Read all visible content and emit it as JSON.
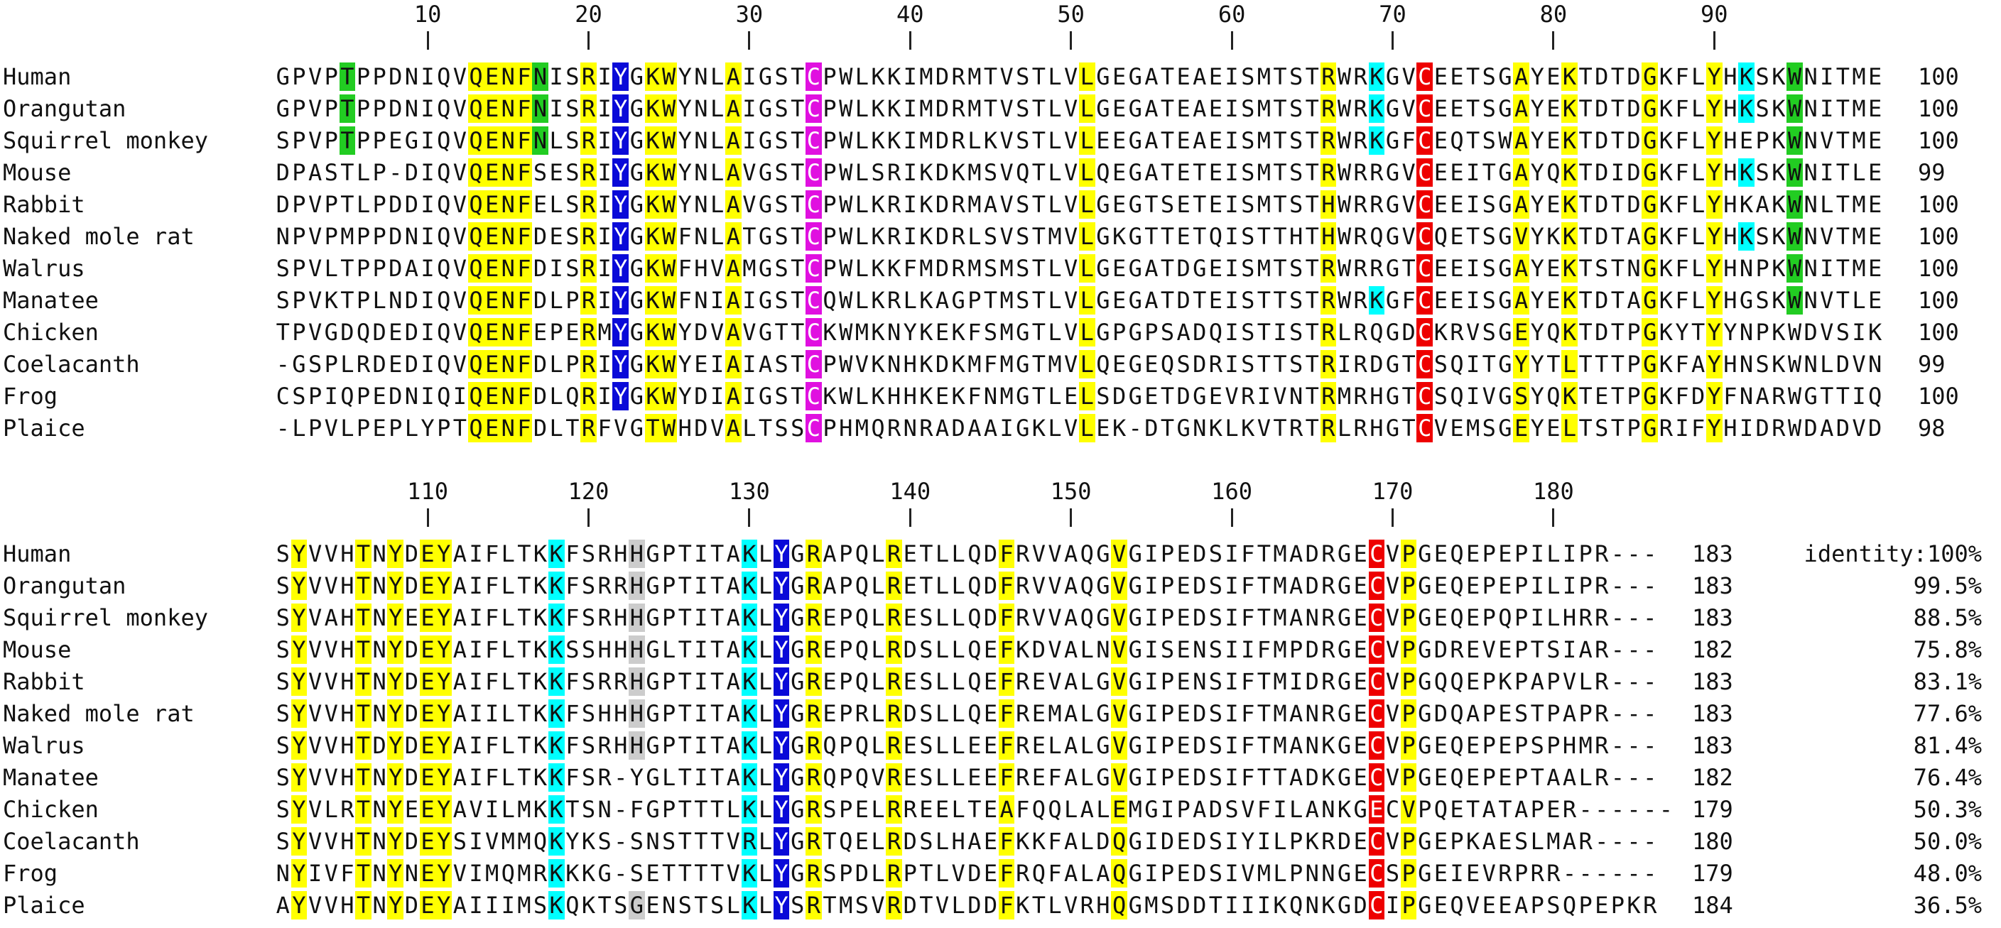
{
  "colors": {
    "yellow": "#ffff00",
    "green": "#22cc22",
    "blue": "#0a0ad8",
    "magenta": "#e010e0",
    "cyan": "#00ffff",
    "red": "#ee0000",
    "gray": "#cccccc"
  },
  "blocks": [
    {
      "ruler": [
        {
          "label": "10",
          "pos": 10
        },
        {
          "label": "20",
          "pos": 20
        },
        {
          "label": "30",
          "pos": 30
        },
        {
          "label": "40",
          "pos": 40
        },
        {
          "label": "50",
          "pos": 50
        },
        {
          "label": "60",
          "pos": 60
        },
        {
          "label": "70",
          "pos": 70
        },
        {
          "label": "80",
          "pos": 80
        },
        {
          "label": "90",
          "pos": 90
        }
      ],
      "rows": [
        {
          "name": "Human",
          "seq": "GPVPTPPDNIQVQENFNISRIYGKWYNLAIGSTCPWLKKIMDRMTVSTLVLGEGATEAEISMTSTRWRKGVCEETSGAYEKTDTDGKFLYHKSKWNITME",
          "count": "100"
        },
        {
          "name": "Orangutan",
          "seq": "GPVPTPPDNIQVQENFNISRIYGKWYNLAIGSTCPWLKKIMDRMTVSTLVLGEGATEAEISMTSTRWRKGVCEETSGAYEKTDTDGKFLYHKSKWNITME",
          "count": "100"
        },
        {
          "name": "Squirrel monkey",
          "seq": "SPVPTPPEGIQVQENFNLSRIYGKWYNLAIGSTCPWLKKIMDRLKVSTLVLEEGATEAEISMTSTRWRKGFCEQTSWAYEKTDTDGKFLYHEPKWNVTME",
          "count": "100"
        },
        {
          "name": "Mouse",
          "seq": "DPASTLP-DIQVQENFSESRIYGKWYNLAVGSTCPWLSRIKDKMSVQTLVLQEGATETEISMTSTRWRRGVCEEITGAYQKTDIDGKFLYHKSKWNITLE",
          "count": "99"
        },
        {
          "name": "Rabbit",
          "seq": "DPVPTLPDDIQVQENFELSRIYGKWYNLAVGSTCPWLKRIKDRMAVSTLVLGEGTSETEISMTSTHWRRGVCEEISGAYEKTDTDGKFLYHKAKWNLTME",
          "count": "100"
        },
        {
          "name": "Naked mole rat",
          "seq": "NPVPMPPDNIQVQENFDESRIYGKWFNLATGSTCPWLKRIKDRLSVSTMVLGKGTTETQISTTHTHWRQGVCQETSGVYKKTDTAGKFLYHKSKWNVTME",
          "count": "100"
        },
        {
          "name": "Walrus",
          "seq": "SPVLTPPDAIQVQENFDISRIYGKWFHVAMGSTCPWLKKFMDRMSMSTLVLGEGATDGEISMTSTRWRRGTCEEISGAYEKTSTNGKFLYHNPKWNITME",
          "count": "100"
        },
        {
          "name": "Manatee",
          "seq": "SPVKTPLNDIQVQENFDLPRIYGKWFNIAIGSTCQWLKRLKAGPTMSTLVLGEGATDTEISTTSTRWRKGFCEEISGAYEKTDTAGKFLYHGSKWNVTLE",
          "count": "100"
        },
        {
          "name": "Chicken",
          "seq": "TPVGDQDEDIQVQENFEPERMYGKWYDVAVGTTCKWMKNYKEKFSMGTLVLGPGPSADQISTISTRLRQGDCKRVSGEYQKTDTPGKYTYYNPKWDVSIK",
          "count": "100"
        },
        {
          "name": "Coelacanth",
          "seq": "-GSPLRDEDIQVQENFDLPRIYGKWYEIAIASTCPWVKNHKDKMFMGTMVLQEGEQSDRISTTSTRIRDGTCSQITGYYTLTTTPGKFAYHNSKWNLDVN",
          "count": "99"
        },
        {
          "name": "Frog",
          "seq": "CSPIQPEDNIQIQENFDLQRIYGKWYDIAIGSTCKWLKHHKEKFNMGTLELSDGETDGEVRIVNTRMRHGTCSQIVGSYQKTETPGKFDYFNARWGTTIQ",
          "count": "100"
        },
        {
          "name": "Plaice",
          "seq": "-LPVLPEPLYPTQENFDLTRFVGTWHDVALTSSCPHMQRNRADAAIGKLVLEK-DTGNKLKVTRTRLRHGTCVEMSGEYELTSTPGRIFYHIDRWDADVD",
          "count": "98"
        }
      ],
      "identity": []
    },
    {
      "ruler": [
        {
          "label": "110",
          "pos": 10
        },
        {
          "label": "120",
          "pos": 20
        },
        {
          "label": "130",
          "pos": 30
        },
        {
          "label": "140",
          "pos": 40
        },
        {
          "label": "150",
          "pos": 50
        },
        {
          "label": "160",
          "pos": 60
        },
        {
          "label": "170",
          "pos": 70
        },
        {
          "label": "180",
          "pos": 80
        }
      ],
      "rows": [
        {
          "name": "Human",
          "seq": "SYVVHTNYDEYAIFLTKKFSRHHGPTITAKLYGRAPQLRETLLQDFRVVAQGVGIPEDSIFTMADRGECVPGEQEPEPILIPR---",
          "count": "183"
        },
        {
          "name": "Orangutan",
          "seq": "SYVVHTNYDEYAIFLTKKFSRRHGPTITAKLYGRAPQLRETLLQDFRVVAQGVGIPEDSIFTMADRGECVPGEQEPEPILIPR---",
          "count": "183"
        },
        {
          "name": "Squirrel monkey",
          "seq": "SYVAHTNYEEYAIFLTKKFSRHHGPTITAKLYGREPQLRESLLQDFRVVAQGVGIPEDSIFTMANRGECVPGEQEPQPILHRR---",
          "count": "183"
        },
        {
          "name": "Mouse",
          "seq": "SYVVHTNYDEYAIFLTKKSSHHHGLTITAKLYGREPQLRDSLLQEFKDVALNVGISENSIIFMPDRGECVPGDREVEPTSIAR---",
          "count": "182"
        },
        {
          "name": "Rabbit",
          "seq": "SYVVHTNYDEYAIFLTKKFSRRHGPTITAKLYGREPQLRESLLQEFREVALGVGIPENSIFTMIDRGECVPGQQEPKPAPVLR---",
          "count": "183"
        },
        {
          "name": "Naked mole rat",
          "seq": "SYVVHTNYDEYAIILTKKFSHHHGPTITAKLYGREPRLRDSLLQEFREMALGVGIPEDSIFTMANRGECVPGDQAPESTPAPR---",
          "count": "183"
        },
        {
          "name": "Walrus",
          "seq": "SYVVHTDYDEYAIFLTKKFSRHHGPTITAKLYGRQPQLRESLLEEFRELALGVGIPEDSIFTMANKGECVPGEQEPEPSPHMR---",
          "count": "183"
        },
        {
          "name": "Manatee",
          "seq": "SYVVHTNYDEYAIFLTKKFSR-YGLTITAKLYGRQPQVRESLLEEFREFALGVGIPEDSIFTTADKGECVPGEQEPEPTAALR---",
          "count": "182"
        },
        {
          "name": "Chicken",
          "seq": "SYVLRTNYEEYAVILMKKTSN-FGPTTTLKLYGRSPELRREELTEAFQQLALEMGIPADSVFILANKGECVPQETATAPER------",
          "count": "179"
        },
        {
          "name": "Coelacanth",
          "seq": "SYVVHTNYDEYSIVMMQKYKS-SNSTTTVRLYGRTQELRDSLHAEFKKFALDQGIDEDSIYILPKRDECVPGEPKAESLMAR----",
          "count": "180"
        },
        {
          "name": "Frog",
          "seq": "NYIVFTNYNEYVIMQMRKKKG-SETTTTVKLYGRSPDLRPTLVDEFRQFALAQGIPEDSIVMLPNNGECSPGEIEVRPRR------",
          "count": "179"
        },
        {
          "name": "Plaice",
          "seq": "AYVVHTNYDEYAIIIMSKQKTSGENSTSLKLYSRTMSVRDTVLDDFKTLVRHQGMSDDTIIIKQNKGDCIPGEQVEEAPSQPEPKR",
          "count": "184"
        }
      ],
      "identity": [
        "identity:100%",
        "99.5%",
        "88.5%",
        "75.8%",
        "83.1%",
        "77.6%",
        "81.4%",
        "76.4%",
        "50.3%",
        "50.0%",
        "48.0%",
        "36.5%"
      ]
    }
  ]
}
